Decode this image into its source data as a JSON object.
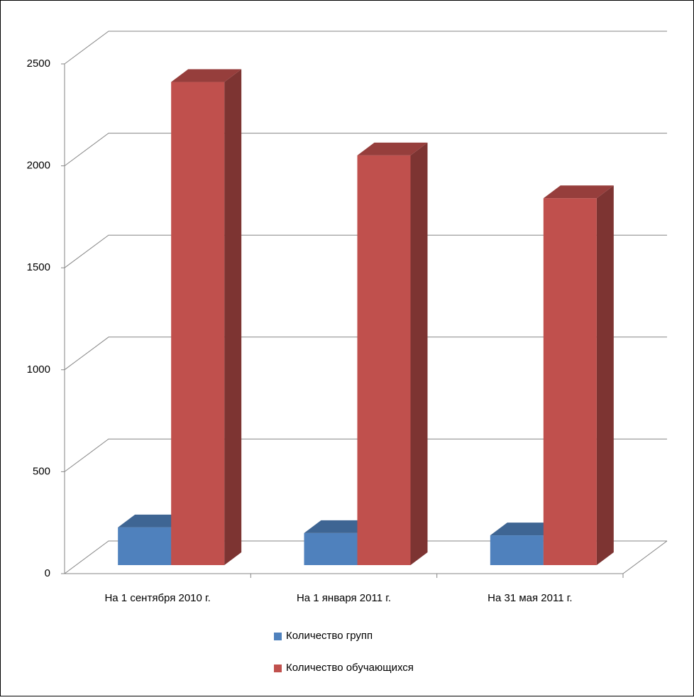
{
  "chart_data": {
    "type": "bar3d",
    "categories": [
      "На 1 сентября 2010 г.",
      "На 1 января 2011 г.",
      "На 31 мая 2011 г."
    ],
    "series": [
      {
        "name": "Количество групп",
        "color": "#4f81bd",
        "values": [
          185,
          157,
          146
        ]
      },
      {
        "name": "Количество обучающихся",
        "color": "#c0504d",
        "values": [
          2370,
          2010,
          1800
        ]
      }
    ],
    "ylim": [
      0,
      2500
    ],
    "yticks": [
      0,
      500,
      1000,
      1500,
      2000,
      2500
    ],
    "grid": true,
    "legend": "bottom"
  }
}
